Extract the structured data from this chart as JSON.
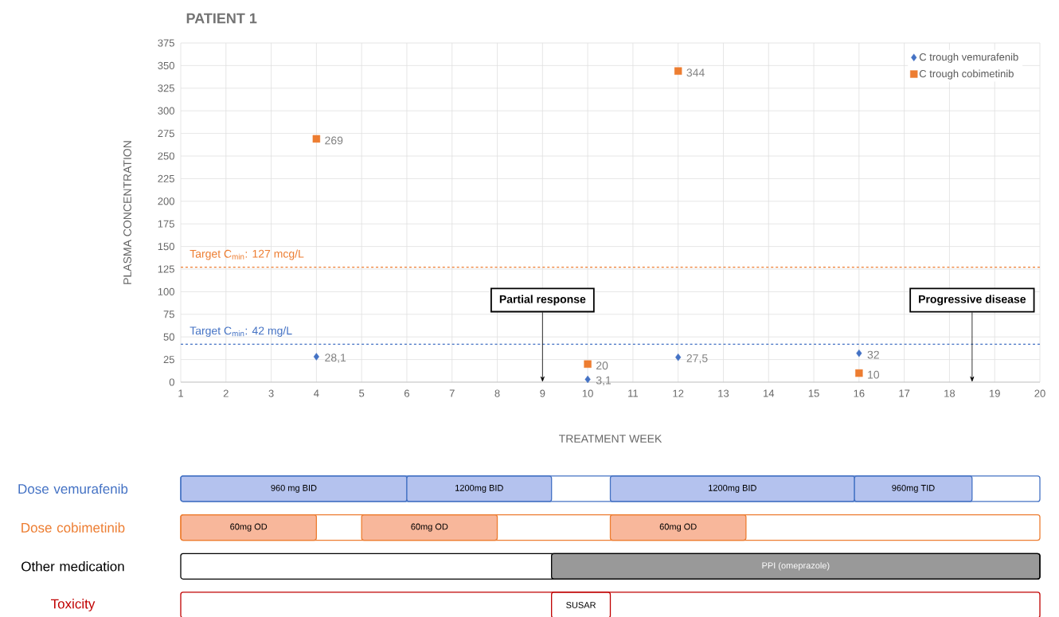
{
  "chart_data": [
    {
      "type": "scatter",
      "title": "PATIENT 1",
      "xlabel": "TREATMENT WEEK",
      "ylabel": "PLASMA CONCENTRATION",
      "x": [
        4,
        10,
        12,
        16
      ],
      "xlim": [
        1,
        20
      ],
      "xticks": [
        1,
        2,
        3,
        4,
        5,
        6,
        7,
        8,
        9,
        10,
        11,
        12,
        13,
        14,
        15,
        16,
        17,
        18,
        19,
        20
      ],
      "ylim": [
        0,
        375
      ],
      "yticks": [
        0,
        25,
        50,
        75,
        100,
        125,
        150,
        175,
        200,
        225,
        250,
        275,
        300,
        325,
        350,
        375
      ],
      "grid": true,
      "legend": "top right",
      "series": [
        {
          "name": "C trough vemurafenib",
          "color": "#4472c4",
          "marker": "diamond",
          "values": [
            28.1,
            3.1,
            27.5,
            32
          ],
          "value_labels": [
            "28,1",
            "3,1",
            "27,5",
            "32"
          ]
        },
        {
          "name": "C trough cobimetinib",
          "color": "#ed7d31",
          "marker": "square",
          "values": [
            269,
            20,
            344,
            10
          ],
          "value_labels": [
            "269",
            "20",
            "344",
            "10"
          ]
        }
      ],
      "ref_lines": [
        {
          "axis": "y",
          "value": 127,
          "label": "Target C$_{min}$: 127 mcg/L",
          "color": "#ed7d31",
          "line_style": "dashed"
        },
        {
          "axis": "y",
          "value": 42,
          "label": "Target C$_{min}$: 42 mg/L",
          "color": "#4472c4",
          "line_style": "dashed"
        }
      ],
      "annotations": [
        "Partial response",
        "Progressive disease"
      ]
    },
    {
      "type": "bar",
      "orientation": "horizontal",
      "categories": [
        "Dose vemurafenib",
        "Dose cobimetinib",
        "Other medication",
        "Toxicity"
      ],
      "xlim": [
        1,
        20
      ],
      "xticks": [
        1,
        2,
        3,
        4,
        5,
        6,
        7,
        8,
        9,
        10,
        11,
        12,
        13,
        14,
        15,
        16,
        17,
        18,
        19,
        20
      ],
      "tick_labels": "y",
      "series": [
        {
          "colors": [
            "#4472c4",
            "#ed7d31",
            "#000000",
            "#c00000"
          ],
          "base": [
            1,
            1,
            1,
            1
          ],
          "values": [
            19,
            19,
            19,
            19
          ]
        },
        {
          "name": "960 mg BID",
          "color": "#b4c2ee",
          "base": [
            1,
            null,
            null,
            null
          ],
          "values": [
            5,
            null,
            null,
            null
          ]
        },
        {
          "name": "1200mg BID",
          "color": "#b4c2ee",
          "base": [
            6,
            null,
            null,
            null
          ],
          "values": [
            3.2,
            null,
            null,
            null
          ]
        },
        {
          "name": "1200mg BID",
          "color": "#b4c2ee",
          "base": [
            10.5,
            null,
            null,
            null
          ],
          "values": [
            5.4,
            null,
            null,
            null
          ]
        },
        {
          "name": "960mg TID",
          "color": "#b4c2ee",
          "base": [
            15.9,
            null,
            null,
            null
          ],
          "values": [
            2.6,
            null,
            null,
            null
          ]
        },
        {
          "name": "60mg OD",
          "color": "#f8b79b",
          "base": [
            null,
            1,
            null,
            null
          ],
          "values": [
            null,
            3,
            null,
            null
          ]
        },
        {
          "name": "60mg OD",
          "color": "#f8b79b",
          "base": [
            null,
            5,
            null,
            null
          ],
          "values": [
            null,
            3,
            null,
            null
          ]
        },
        {
          "name": "60mg OD",
          "color": "#f8b79b",
          "base": [
            null,
            10.5,
            null,
            null
          ],
          "values": [
            null,
            3,
            null,
            null
          ]
        },
        {
          "name": "PPI (omeprazole)",
          "color": "#999999",
          "base": [
            null,
            null,
            9.2,
            null
          ],
          "values": [
            null,
            null,
            10.8,
            null
          ]
        },
        {
          "name": "SUSAR",
          "color": "#ffffff",
          "base": [
            null,
            null,
            null,
            9.2
          ],
          "values": [
            null,
            null,
            null,
            1.3
          ]
        }
      ]
    }
  ]
}
